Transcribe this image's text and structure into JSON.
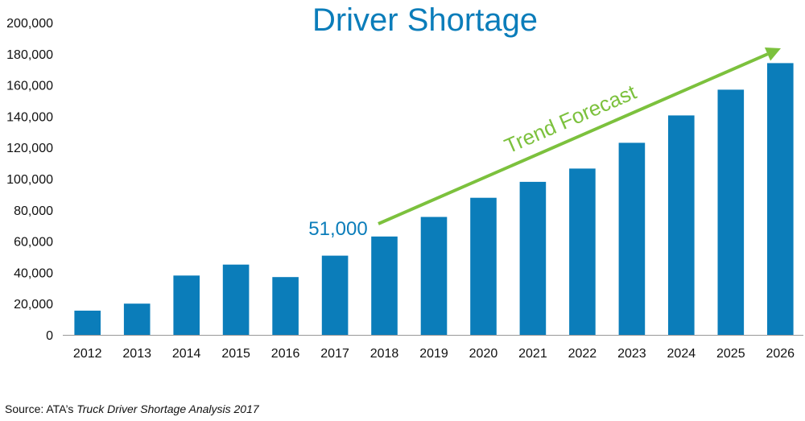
{
  "chart_data": {
    "type": "bar",
    "title": "Driver Shortage",
    "categories": [
      "2012",
      "2013",
      "2014",
      "2015",
      "2016",
      "2017",
      "2018",
      "2019",
      "2020",
      "2021",
      "2022",
      "2023",
      "2024",
      "2025",
      "2026"
    ],
    "values": [
      15500,
      20000,
      38000,
      45000,
      37000,
      50700,
      63000,
      75500,
      87800,
      98000,
      106500,
      123000,
      140500,
      157000,
      174000
    ],
    "ylim": [
      0,
      200000
    ],
    "yticks": [
      "0",
      "20,000",
      "40,000",
      "60,000",
      "80,000",
      "100,000",
      "120,000",
      "140,000",
      "160,000",
      "180,000",
      "200,000"
    ],
    "grid": false,
    "colors": {
      "bar": "#0b7dba",
      "title": "#0b7dba",
      "trend": "#7cc13d",
      "axis": "#999999"
    },
    "annotations": {
      "callout": "51,000",
      "trend_label": "Trend Forecast"
    }
  },
  "source": {
    "prefix": "Source: ATA’s ",
    "title": "Truck Driver Shortage Analysis 2017"
  }
}
